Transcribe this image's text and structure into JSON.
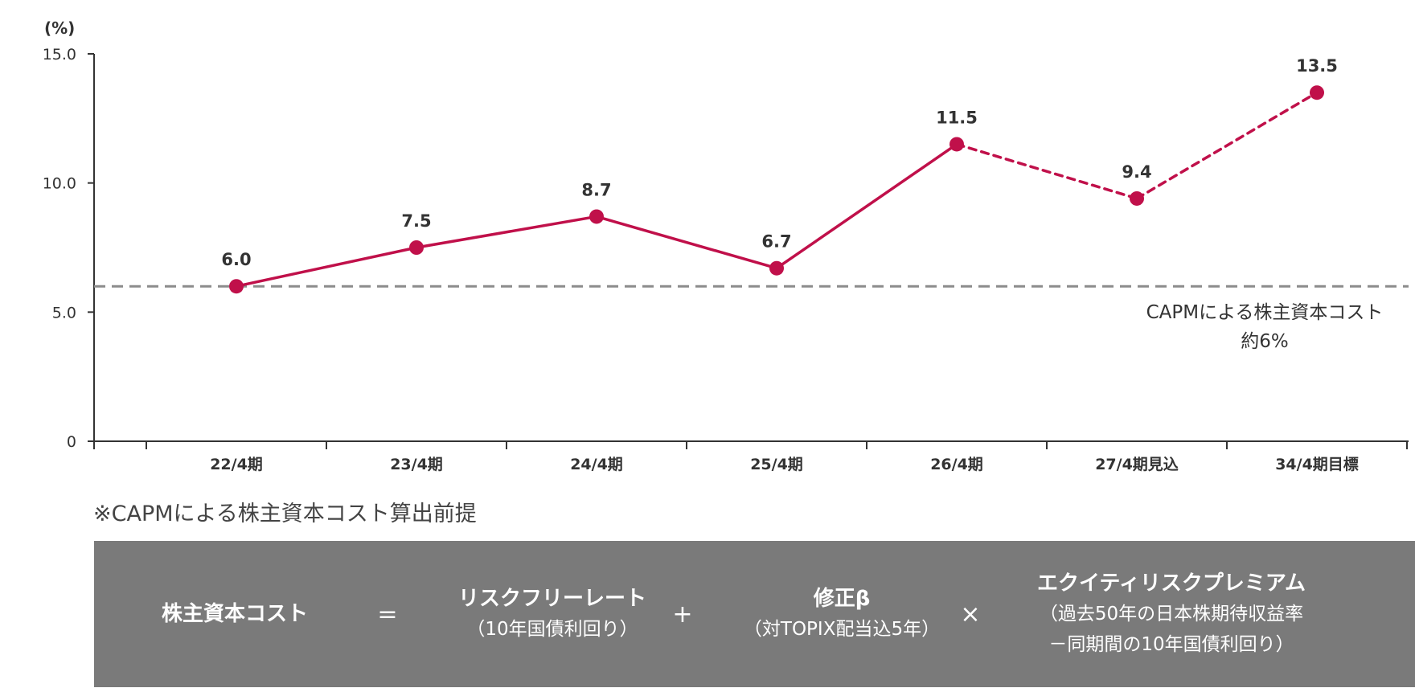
{
  "chart_data": {
    "type": "line",
    "unit_label": "(%)",
    "ylim": [
      0,
      15
    ],
    "y_ticks": [
      "0",
      "5.0",
      "10.0",
      "15.0"
    ],
    "y_tick_values": [
      0,
      5,
      10,
      15
    ],
    "categories": [
      "22/4期",
      "23/4期",
      "24/4期",
      "25/4期",
      "26/4期",
      "27/4期見込",
      "34/4期目標"
    ],
    "series": [
      {
        "values": [
          6.0,
          7.5,
          8.7,
          6.7,
          11.5,
          9.4,
          13.5
        ],
        "labels": [
          "6.0",
          "7.5",
          "8.7",
          "6.7",
          "11.5",
          "9.4",
          "13.5"
        ],
        "solid_until_index": 4,
        "color": "#c0104a"
      }
    ],
    "reference_line": {
      "value": 6.0,
      "style": "dashed",
      "color": "#8c8c8c",
      "label_line1": "CAPMによる株主資本コスト",
      "label_line2": "約6%"
    },
    "grid": false,
    "legend": "none"
  },
  "note": "※CAPMによる株主資本コスト算出前提",
  "formula": {
    "background": "#7a7a7a",
    "cost": "株主資本コスト",
    "eq": "=",
    "risk_free": "リスクフリーレート",
    "risk_free_sub": "（10年国債利回り）",
    "plus": "+",
    "beta": "修正β",
    "beta_sub": "（対TOPIX配当込5年）",
    "times": "×",
    "premium": "エクイティリスクプレミアム",
    "premium_sub1": "（過去50年の日本株期待収益率",
    "premium_sub2": "－同期間の10年国債利回り）"
  }
}
